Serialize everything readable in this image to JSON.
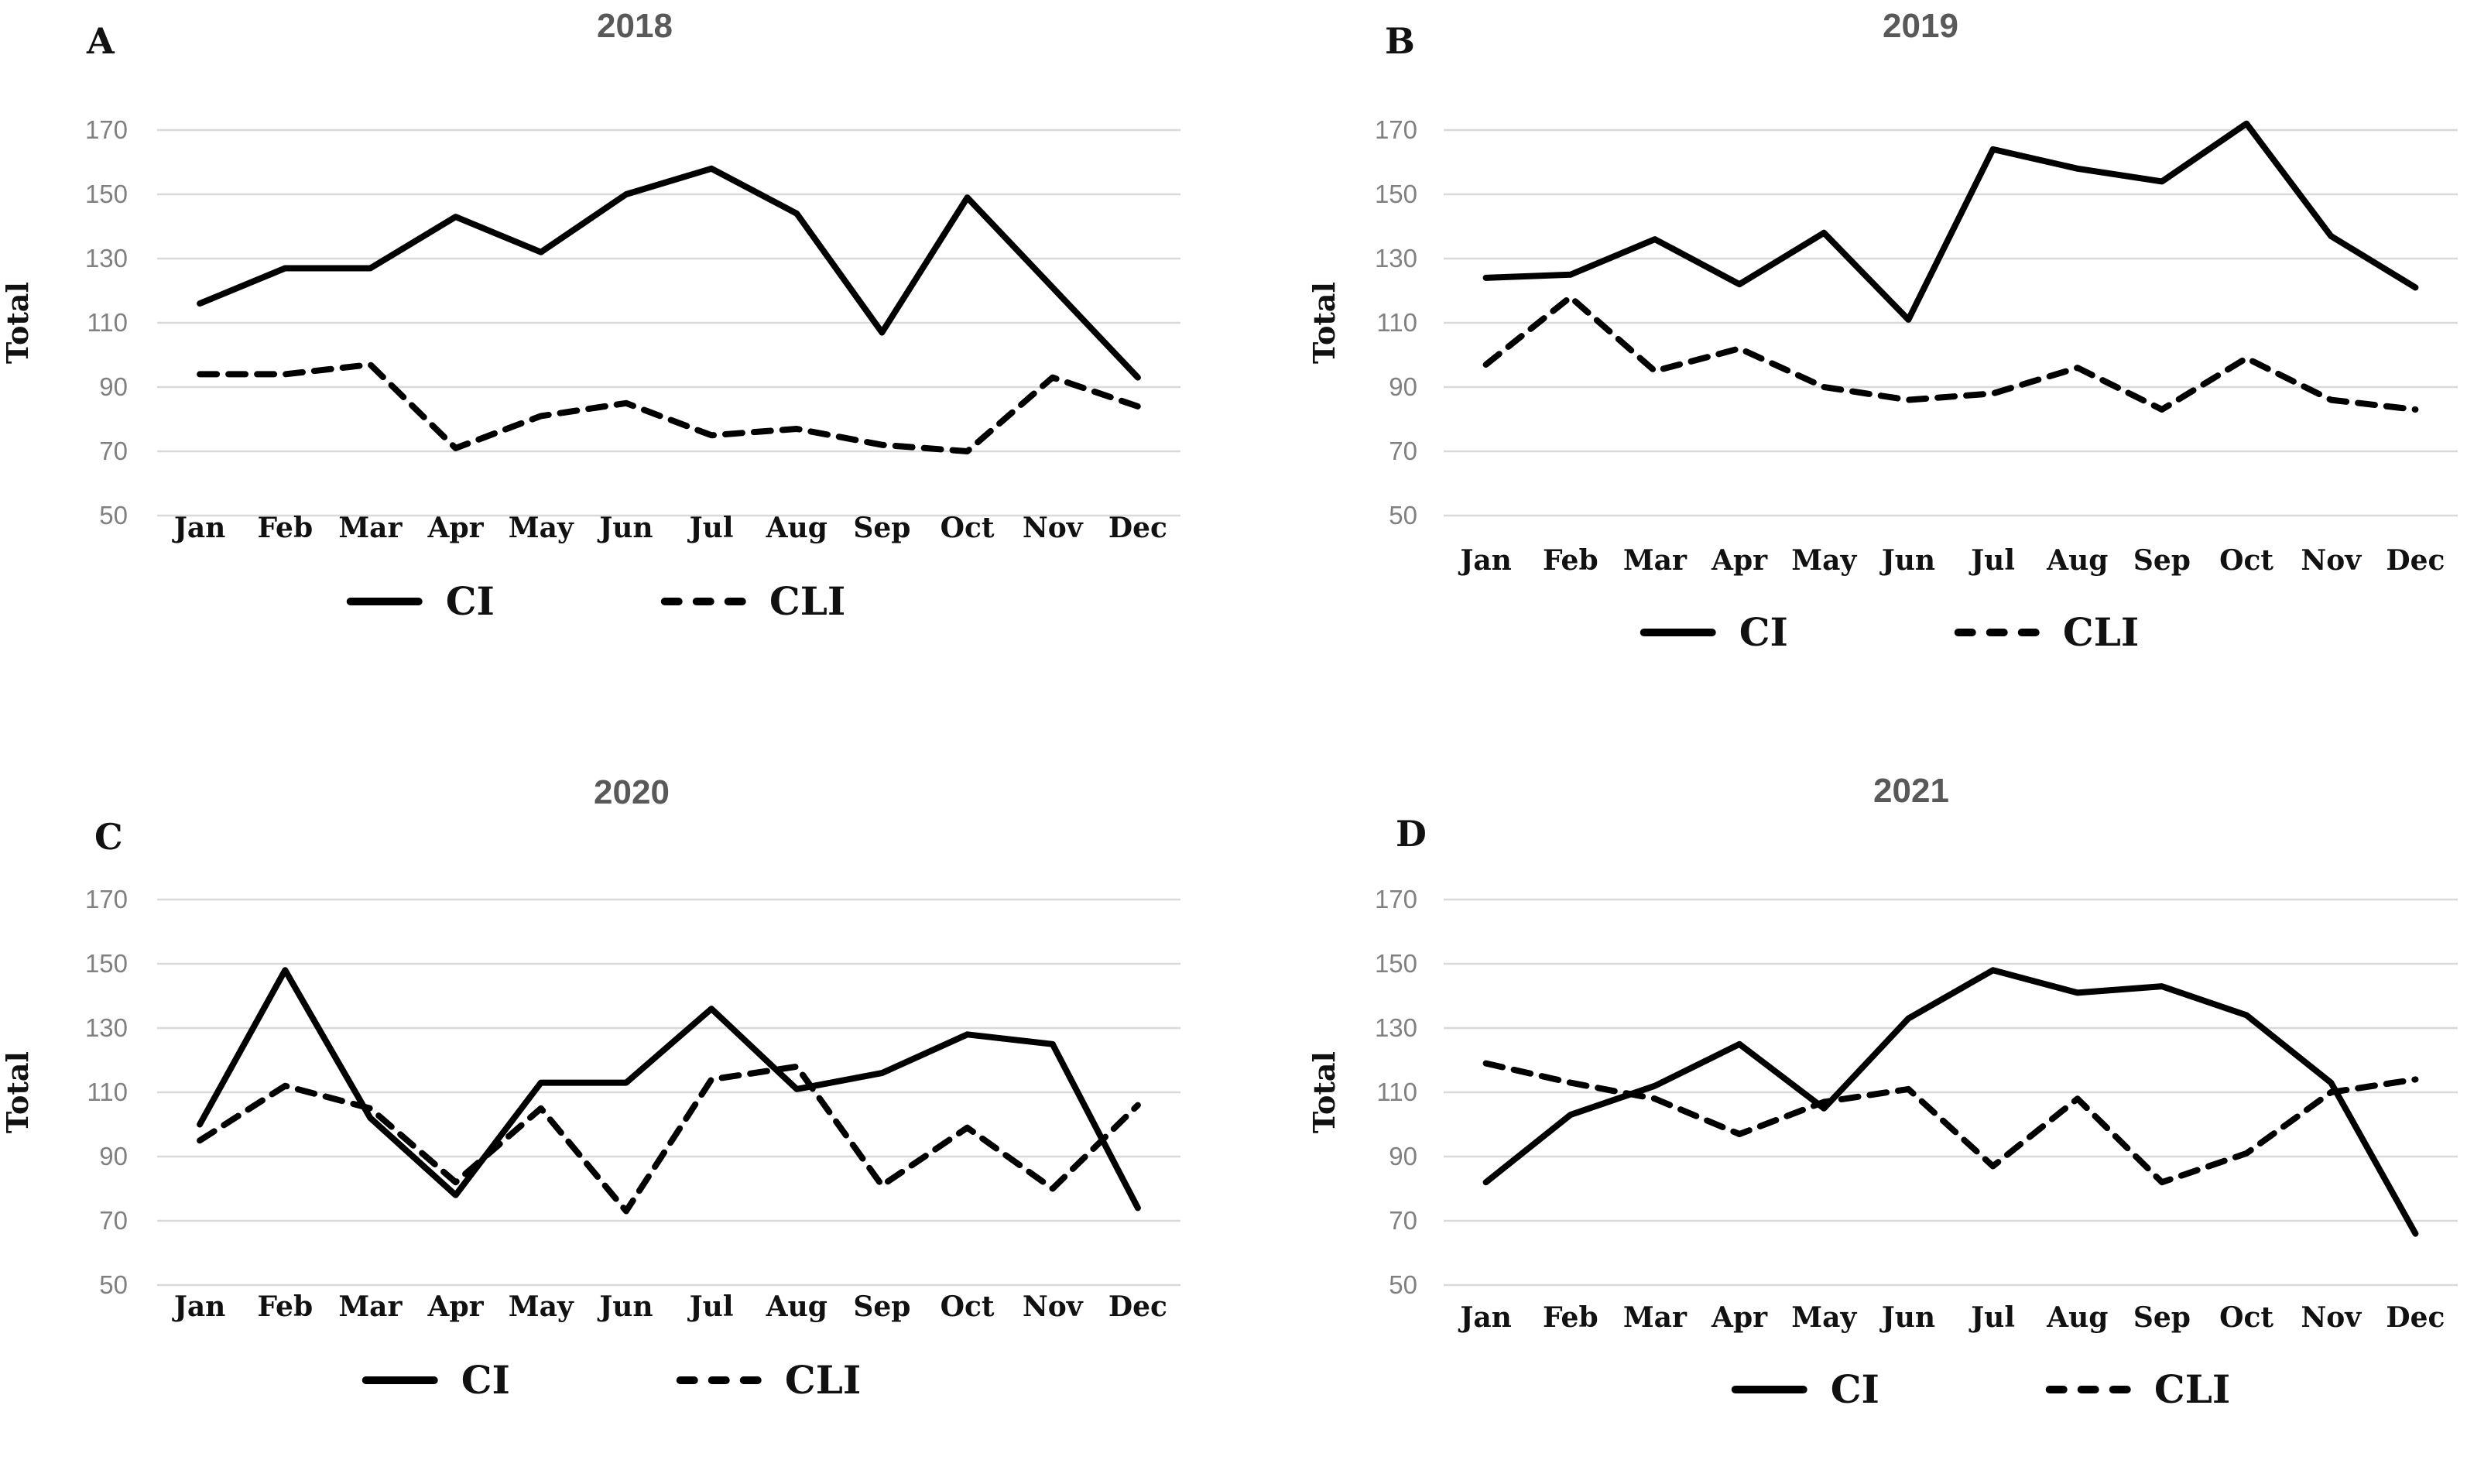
{
  "figure": {
    "y_axis_label": "Total",
    "y_ticks": [
      170,
      150,
      130,
      110,
      90,
      70,
      50
    ],
    "months": [
      "Jan",
      "Feb",
      "Mar",
      "Apr",
      "May",
      "Jun",
      "Jul",
      "Aug",
      "Sep",
      "Oct",
      "Nov",
      "Dec"
    ],
    "legend": {
      "ci_label": "CI",
      "cli_label": "CLI"
    },
    "colors": {
      "line": "#000000",
      "gridline": "#d9d9d9",
      "tick_label": "#808080",
      "title": "#595959",
      "text": "#111111"
    }
  },
  "chart_data": [
    {
      "type": "line",
      "panel_letter": "A",
      "title": "2018",
      "xlabel": "",
      "ylabel": "Total",
      "ylim": [
        50,
        170
      ],
      "grid": true,
      "legend_position": "bottom",
      "categories": [
        "Jan",
        "Feb",
        "Mar",
        "Apr",
        "May",
        "Jun",
        "Jul",
        "Aug",
        "Sep",
        "Oct",
        "Nov",
        "Dec"
      ],
      "series": [
        {
          "name": "CI",
          "style": "solid",
          "values": [
            116,
            127,
            127,
            143,
            132,
            150,
            158,
            144,
            107,
            149,
            121,
            93
          ]
        },
        {
          "name": "CLI",
          "style": "dashed",
          "values": [
            94,
            94,
            97,
            71,
            81,
            85,
            75,
            77,
            72,
            70,
            93,
            84
          ]
        }
      ]
    },
    {
      "type": "line",
      "panel_letter": "B",
      "title": "2019",
      "xlabel": "",
      "ylabel": "Total",
      "ylim": [
        50,
        170
      ],
      "grid": true,
      "legend_position": "bottom",
      "categories": [
        "Jan",
        "Feb",
        "Mar",
        "Apr",
        "May",
        "Jun",
        "Jul",
        "Aug",
        "Sep",
        "Oct",
        "Nov",
        "Dec"
      ],
      "series": [
        {
          "name": "CI",
          "style": "solid",
          "values": [
            124,
            125,
            136,
            122,
            138,
            111,
            164,
            158,
            154,
            172,
            137,
            121
          ]
        },
        {
          "name": "CLI",
          "style": "dashed",
          "values": [
            97,
            118,
            95,
            102,
            90,
            86,
            88,
            96,
            83,
            99,
            86,
            83
          ]
        }
      ]
    },
    {
      "type": "line",
      "panel_letter": "C",
      "title": "2020",
      "xlabel": "",
      "ylabel": "Total",
      "ylim": [
        50,
        170
      ],
      "grid": true,
      "legend_position": "bottom",
      "categories": [
        "Jan",
        "Feb",
        "Mar",
        "Apr",
        "May",
        "Jun",
        "Jul",
        "Aug",
        "Sep",
        "Oct",
        "Nov",
        "Dec"
      ],
      "series": [
        {
          "name": "CI",
          "style": "solid",
          "values": [
            100,
            148,
            102,
            78,
            113,
            113,
            136,
            111,
            116,
            128,
            125,
            74
          ]
        },
        {
          "name": "CLI",
          "style": "dashed",
          "values": [
            95,
            112,
            105,
            82,
            105,
            73,
            114,
            118,
            81,
            99,
            80,
            106
          ]
        }
      ]
    },
    {
      "type": "line",
      "panel_letter": "D",
      "title": "2021",
      "xlabel": "",
      "ylabel": "Total",
      "ylim": [
        50,
        170
      ],
      "grid": true,
      "legend_position": "bottom",
      "categories": [
        "Jan",
        "Feb",
        "Mar",
        "Apr",
        "May",
        "Jun",
        "Jul",
        "Aug",
        "Sep",
        "Oct",
        "Nov",
        "Dec"
      ],
      "series": [
        {
          "name": "CI",
          "style": "solid",
          "values": [
            82,
            103,
            112,
            125,
            105,
            133,
            148,
            141,
            143,
            134,
            113,
            66
          ]
        },
        {
          "name": "CLI",
          "style": "dashed",
          "values": [
            119,
            113,
            108,
            97,
            107,
            111,
            87,
            108,
            82,
            91,
            110,
            114
          ]
        }
      ]
    }
  ]
}
